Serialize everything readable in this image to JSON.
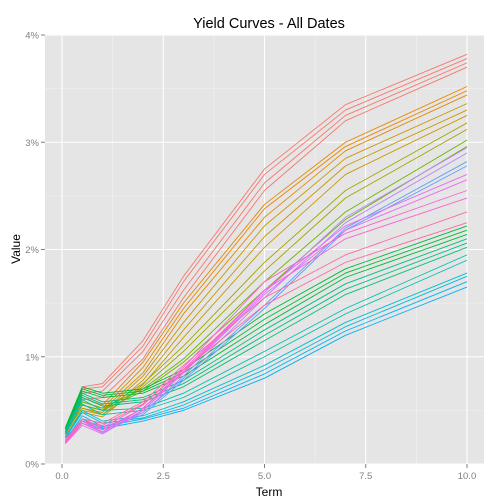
{
  "chart_data": {
    "type": "line",
    "title": "Yield Curves - All Dates",
    "xlabel": "Term",
    "ylabel": "Value",
    "x": [
      0.083,
      0.5,
      1,
      2,
      3,
      5,
      7,
      10
    ],
    "xlim": [
      -0.42,
      10.42
    ],
    "ylim": [
      0,
      4
    ],
    "x_ticks": [
      {
        "value": 0.0,
        "label": "0.0"
      },
      {
        "value": 2.5,
        "label": "2.5"
      },
      {
        "value": 5.0,
        "label": "5.0"
      },
      {
        "value": 7.5,
        "label": "7.5"
      },
      {
        "value": 10.0,
        "label": "10.0"
      }
    ],
    "y_ticks": [
      {
        "value": 0,
        "label": "0%"
      },
      {
        "value": 1,
        "label": "1%"
      },
      {
        "value": 2,
        "label": "2%"
      },
      {
        "value": 3,
        "label": "3%"
      },
      {
        "value": 4,
        "label": "4%"
      }
    ],
    "grid": true,
    "legend": "none",
    "series": [
      {
        "color": "#F8766D",
        "values": [
          0.3,
          0.72,
          0.75,
          1.15,
          1.75,
          2.75,
          3.35,
          3.82
        ]
      },
      {
        "color": "#F8766D",
        "values": [
          0.28,
          0.7,
          0.72,
          1.1,
          1.7,
          2.7,
          3.3,
          3.78
        ]
      },
      {
        "color": "#F8766D",
        "values": [
          0.26,
          0.66,
          0.68,
          1.05,
          1.62,
          2.62,
          3.25,
          3.74
        ]
      },
      {
        "color": "#F8766D",
        "values": [
          0.25,
          0.6,
          0.62,
          0.98,
          1.55,
          2.55,
          3.2,
          3.7
        ]
      },
      {
        "color": "#E58700",
        "values": [
          0.32,
          0.62,
          0.55,
          0.95,
          1.5,
          2.42,
          3.0,
          3.52
        ]
      },
      {
        "color": "#E58700",
        "values": [
          0.3,
          0.58,
          0.52,
          0.9,
          1.45,
          2.38,
          2.96,
          3.48
        ]
      },
      {
        "color": "#E58700",
        "values": [
          0.28,
          0.55,
          0.5,
          0.85,
          1.4,
          2.3,
          2.92,
          3.44
        ]
      },
      {
        "color": "#C99800",
        "values": [
          0.3,
          0.52,
          0.48,
          0.82,
          1.32,
          2.22,
          2.85,
          3.36
        ]
      },
      {
        "color": "#C99800",
        "values": [
          0.28,
          0.5,
          0.46,
          0.78,
          1.25,
          2.12,
          2.78,
          3.3
        ]
      },
      {
        "color": "#C99800",
        "values": [
          0.26,
          0.48,
          0.44,
          0.74,
          1.18,
          2.02,
          2.7,
          3.25
        ]
      },
      {
        "color": "#A3A500",
        "values": [
          0.32,
          0.55,
          0.5,
          0.75,
          1.1,
          1.88,
          2.55,
          3.18
        ]
      },
      {
        "color": "#A3A500",
        "values": [
          0.3,
          0.52,
          0.46,
          0.72,
          1.05,
          1.8,
          2.48,
          3.12
        ]
      },
      {
        "color": "#6BB100",
        "values": [
          0.32,
          0.58,
          0.52,
          0.7,
          0.98,
          1.7,
          2.35,
          3.02
        ]
      },
      {
        "color": "#6BB100",
        "values": [
          0.3,
          0.55,
          0.5,
          0.68,
          0.95,
          1.62,
          2.28,
          2.96
        ]
      },
      {
        "color": "#00BA38",
        "values": [
          0.34,
          0.72,
          0.66,
          0.7,
          0.88,
          1.4,
          1.82,
          2.22
        ]
      },
      {
        "color": "#00BA38",
        "values": [
          0.33,
          0.7,
          0.64,
          0.68,
          0.85,
          1.35,
          1.78,
          2.18
        ]
      },
      {
        "color": "#00BA38",
        "values": [
          0.32,
          0.68,
          0.62,
          0.66,
          0.82,
          1.3,
          1.74,
          2.14
        ]
      },
      {
        "color": "#00BF7D",
        "values": [
          0.3,
          0.66,
          0.58,
          0.62,
          0.78,
          1.25,
          1.68,
          2.1
        ]
      },
      {
        "color": "#00BF7D",
        "values": [
          0.29,
          0.64,
          0.56,
          0.6,
          0.75,
          1.2,
          1.63,
          2.06
        ]
      },
      {
        "color": "#00BF7D",
        "values": [
          0.28,
          0.62,
          0.54,
          0.58,
          0.72,
          1.15,
          1.58,
          2.02
        ]
      },
      {
        "color": "#00C0AF",
        "values": [
          0.3,
          0.6,
          0.5,
          0.52,
          0.66,
          1.05,
          1.45,
          1.95
        ]
      },
      {
        "color": "#00C0AF",
        "values": [
          0.28,
          0.56,
          0.46,
          0.5,
          0.62,
          1.0,
          1.4,
          1.9
        ]
      },
      {
        "color": "#00BCD8",
        "values": [
          0.25,
          0.5,
          0.4,
          0.45,
          0.58,
          0.92,
          1.32,
          1.78
        ]
      },
      {
        "color": "#00BCD8",
        "values": [
          0.24,
          0.48,
          0.38,
          0.43,
          0.55,
          0.88,
          1.28,
          1.75
        ]
      },
      {
        "color": "#00B0F6",
        "values": [
          0.22,
          0.45,
          0.35,
          0.42,
          0.52,
          0.84,
          1.24,
          1.7
        ]
      },
      {
        "color": "#00B0F6",
        "values": [
          0.2,
          0.42,
          0.33,
          0.4,
          0.5,
          0.8,
          1.2,
          1.65
        ]
      },
      {
        "color": "#619CFF",
        "values": [
          0.24,
          0.42,
          0.34,
          0.48,
          0.8,
          1.48,
          2.2,
          2.82
        ]
      },
      {
        "color": "#619CFF",
        "values": [
          0.22,
          0.4,
          0.32,
          0.46,
          0.78,
          1.45,
          2.18,
          2.78
        ]
      },
      {
        "color": "#B983FF",
        "values": [
          0.22,
          0.4,
          0.3,
          0.5,
          0.85,
          1.6,
          2.3,
          2.95
        ]
      },
      {
        "color": "#B983FF",
        "values": [
          0.21,
          0.38,
          0.29,
          0.48,
          0.82,
          1.55,
          2.25,
          2.9
        ]
      },
      {
        "color": "#E76BF3",
        "values": [
          0.2,
          0.38,
          0.3,
          0.52,
          0.88,
          1.62,
          2.22,
          2.7
        ]
      },
      {
        "color": "#E76BF3",
        "values": [
          0.19,
          0.36,
          0.28,
          0.5,
          0.85,
          1.58,
          2.18,
          2.65
        ]
      },
      {
        "color": "#FD61D1",
        "values": [
          0.2,
          0.4,
          0.34,
          0.55,
          0.9,
          1.7,
          2.15,
          2.55
        ]
      },
      {
        "color": "#FD61D1",
        "values": [
          0.19,
          0.38,
          0.32,
          0.52,
          0.86,
          1.62,
          2.1,
          2.48
        ]
      },
      {
        "color": "#FF67A4",
        "values": [
          0.22,
          0.42,
          0.38,
          0.58,
          0.92,
          1.55,
          1.95,
          2.35
        ]
      },
      {
        "color": "#FF67A4",
        "values": [
          0.21,
          0.4,
          0.36,
          0.56,
          0.88,
          1.48,
          1.88,
          2.25
        ]
      }
    ]
  }
}
